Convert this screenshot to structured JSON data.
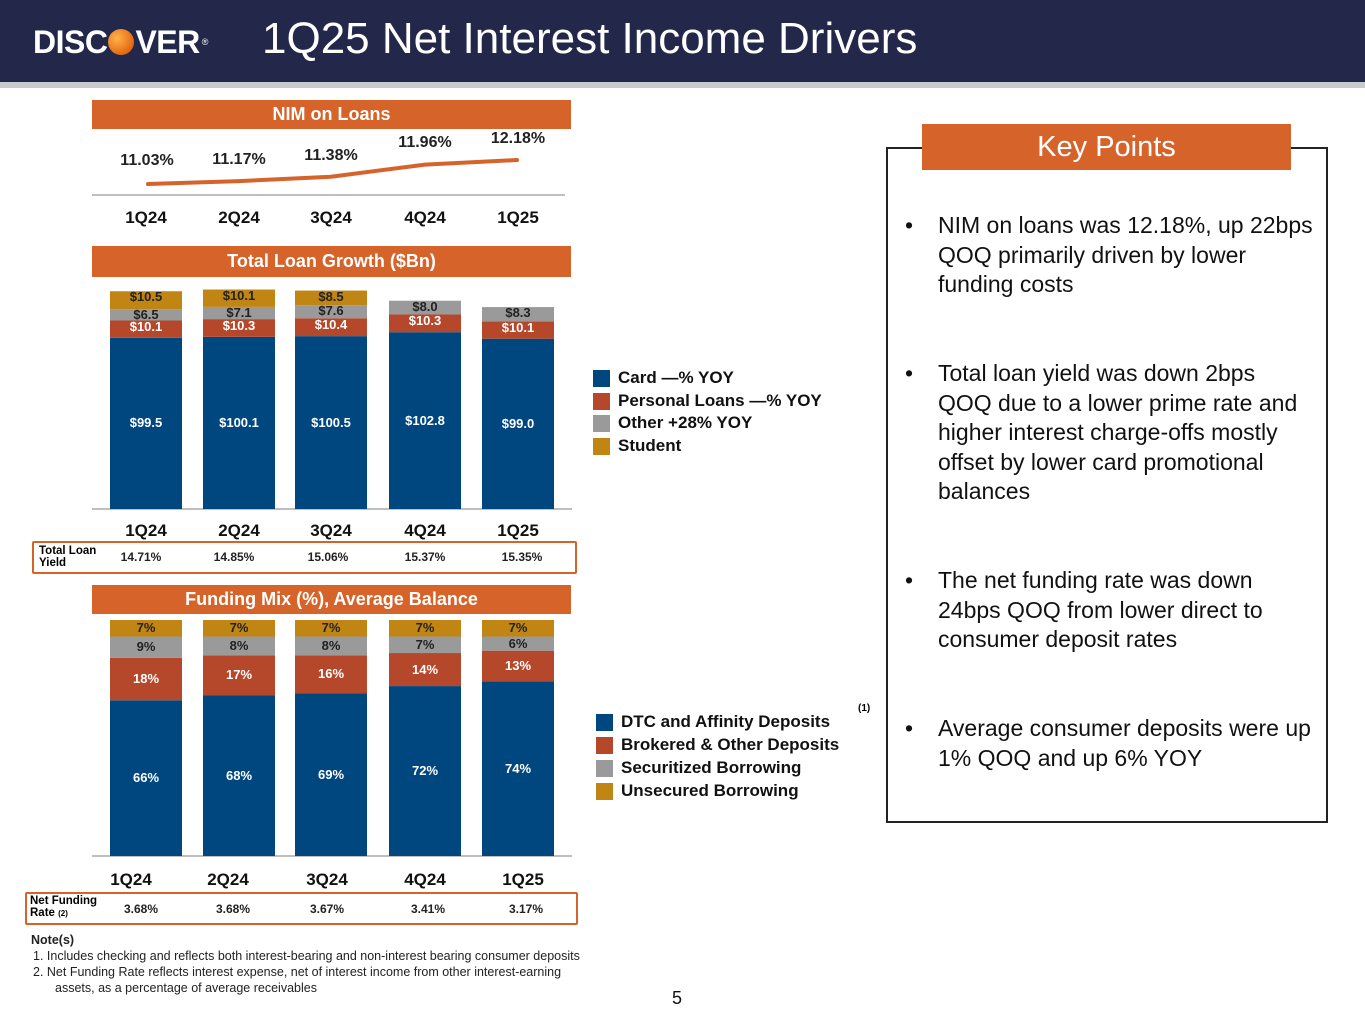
{
  "header": {
    "logo_text_left": "DISC",
    "logo_text_right": "VER",
    "logo_tm": "®",
    "title": "1Q25 Net Interest Income Drivers"
  },
  "colors": {
    "navy": "#23284a",
    "orange": "#d5632a",
    "card": "#00467f",
    "personal": "#b5472b",
    "other": "#9a9a9a",
    "student": "#c08512"
  },
  "quarters": [
    "1Q24",
    "2Q24",
    "3Q24",
    "4Q24",
    "1Q25"
  ],
  "nim": {
    "title": "NIM on Loans",
    "values": [
      "11.03%",
      "11.17%",
      "11.38%",
      "11.96%",
      "12.18%"
    ],
    "chart_data": {
      "type": "line",
      "categories": [
        "1Q24",
        "2Q24",
        "3Q24",
        "4Q24",
        "1Q25"
      ],
      "values": [
        11.03,
        11.17,
        11.38,
        11.96,
        12.18
      ],
      "title": "NIM on Loans"
    }
  },
  "loans": {
    "title": "Total Loan Growth ($Bn)",
    "card": [
      "$99.5",
      "$100.1",
      "$100.5",
      "$102.8",
      "$99.0"
    ],
    "personal": [
      "$10.1",
      "$10.3",
      "$10.4",
      "$10.3",
      "$10.1"
    ],
    "other": [
      "$6.5",
      "$7.1",
      "$7.6",
      "$8.0",
      "$8.3"
    ],
    "student": [
      "$10.5",
      "$10.1",
      "$8.5",
      "",
      ""
    ],
    "legend": [
      "Card —% YOY",
      "Personal Loans —% YOY",
      "Other +28% YOY",
      "Student"
    ],
    "yield_label": "Total Loan Yield",
    "yields": [
      "14.71%",
      "14.85%",
      "15.06%",
      "15.37%",
      "15.35%"
    ],
    "chart_data": {
      "type": "bar",
      "stacked": true,
      "categories": [
        "1Q24",
        "2Q24",
        "3Q24",
        "4Q24",
        "1Q25"
      ],
      "series": [
        {
          "name": "Card",
          "values": [
            99.5,
            100.1,
            100.5,
            102.8,
            99.0
          ]
        },
        {
          "name": "Personal Loans",
          "values": [
            10.1,
            10.3,
            10.4,
            10.3,
            10.1
          ]
        },
        {
          "name": "Other",
          "values": [
            6.5,
            7.1,
            7.6,
            8.0,
            8.3
          ]
        },
        {
          "name": "Student",
          "values": [
            10.5,
            10.1,
            8.5,
            0,
            0
          ]
        }
      ],
      "title": "Total Loan Growth ($Bn)"
    }
  },
  "funding": {
    "title": "Funding Mix (%), Average Balance",
    "dtc": [
      "66%",
      "68%",
      "69%",
      "72%",
      "74%"
    ],
    "brokered": [
      "18%",
      "17%",
      "16%",
      "14%",
      "13%"
    ],
    "securitized": [
      "9%",
      "8%",
      "8%",
      "7%",
      "6%"
    ],
    "unsecured": [
      "7%",
      "7%",
      "7%",
      "7%",
      "7%"
    ],
    "legend": [
      "DTC and Affinity Deposits",
      "Brokered & Other Deposits",
      "Securitized Borrowing",
      "Unsecured Borrowing"
    ],
    "legend_note": "(1)",
    "rate_label": "Net Funding Rate",
    "rate_note": "(2)",
    "rates": [
      "3.68%",
      "3.68%",
      "3.67%",
      "3.41%",
      "3.17%"
    ],
    "chart_data": {
      "type": "bar",
      "stacked": true,
      "categories": [
        "1Q24",
        "2Q24",
        "3Q24",
        "4Q24",
        "1Q25"
      ],
      "series": [
        {
          "name": "DTC and Affinity Deposits",
          "values": [
            66,
            68,
            69,
            72,
            74
          ]
        },
        {
          "name": "Brokered & Other Deposits",
          "values": [
            18,
            17,
            16,
            14,
            13
          ]
        },
        {
          "name": "Securitized Borrowing",
          "values": [
            9,
            8,
            8,
            7,
            6
          ]
        },
        {
          "name": "Unsecured Borrowing",
          "values": [
            7,
            7,
            7,
            7,
            7
          ]
        }
      ],
      "title": "Funding Mix (%), Average Balance"
    }
  },
  "key_points": {
    "title": "Key Points",
    "bullets": [
      "NIM on loans was 12.18%, up 22bps QOQ primarily driven by lower funding costs",
      "Total loan yield was down 2bps QOQ due to a lower prime rate and higher interest charge-offs mostly offset by lower card promotional balances",
      "The net funding rate was down 24bps QOQ from lower direct to consumer deposit rates",
      "Average consumer deposits were up 1% QOQ and up 6% YOY"
    ]
  },
  "notes": {
    "heading": "Note(s)",
    "items": [
      "1.  Includes checking and reflects both interest-bearing and non-interest bearing consumer deposits",
      "2.  Net Funding Rate reflects interest expense, net of interest income from other interest-earning assets, as a percentage of average receivables"
    ]
  },
  "page_number": "5"
}
